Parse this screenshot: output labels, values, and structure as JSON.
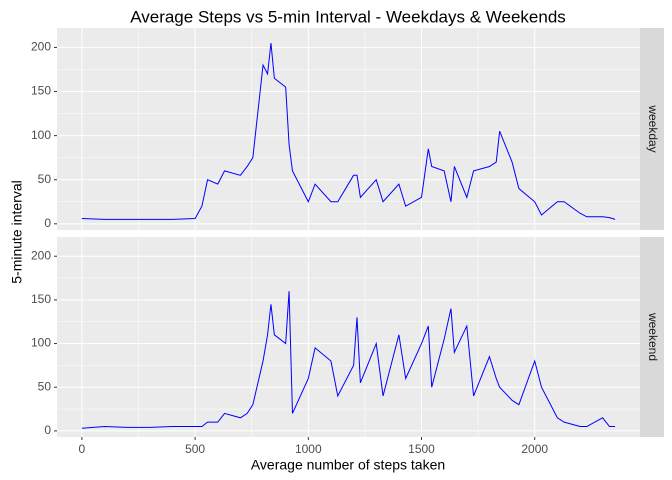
{
  "chart_data": {
    "type": "line",
    "title": "Average Steps vs 5-min Interval - Weekdays & Weekends",
    "x_label": "Average number of steps taken",
    "y_label": "5-minute interval",
    "color": "#0000ff",
    "grid": true,
    "xlim": [
      -110,
      2465
    ],
    "ylim": [
      -7,
      222
    ],
    "xticks": [
      0,
      500,
      1000,
      1500,
      2000
    ],
    "yticks": [
      0,
      50,
      100,
      150,
      200
    ],
    "x": [
      0,
      100,
      200,
      300,
      400,
      500,
      530,
      555,
      600,
      630,
      700,
      730,
      755,
      800,
      820,
      835,
      850,
      900,
      915,
      930,
      1000,
      1030,
      1100,
      1130,
      1200,
      1215,
      1230,
      1300,
      1330,
      1400,
      1430,
      1500,
      1530,
      1545,
      1600,
      1630,
      1645,
      1700,
      1730,
      1800,
      1830,
      1845,
      1900,
      1930,
      2000,
      2030,
      2100,
      2130,
      2200,
      2230,
      2300,
      2330,
      2355
    ],
    "series": [
      {
        "name": "weekday",
        "values": [
          6,
          5,
          5,
          5,
          5,
          6,
          20,
          50,
          45,
          60,
          55,
          65,
          75,
          180,
          170,
          205,
          165,
          155,
          90,
          60,
          25,
          45,
          25,
          25,
          55,
          55,
          30,
          50,
          25,
          45,
          20,
          30,
          85,
          65,
          60,
          25,
          65,
          30,
          60,
          65,
          70,
          105,
          70,
          40,
          25,
          10,
          25,
          25,
          12,
          8,
          8,
          7,
          5
        ]
      },
      {
        "name": "weekend",
        "values": [
          3,
          5,
          4,
          4,
          5,
          5,
          5,
          10,
          10,
          20,
          15,
          20,
          30,
          80,
          110,
          145,
          110,
          100,
          160,
          20,
          60,
          95,
          80,
          40,
          75,
          130,
          55,
          100,
          40,
          110,
          60,
          100,
          120,
          50,
          105,
          140,
          90,
          120,
          40,
          85,
          60,
          50,
          35,
          30,
          80,
          50,
          15,
          10,
          5,
          5,
          15,
          5,
          5
        ]
      }
    ]
  }
}
